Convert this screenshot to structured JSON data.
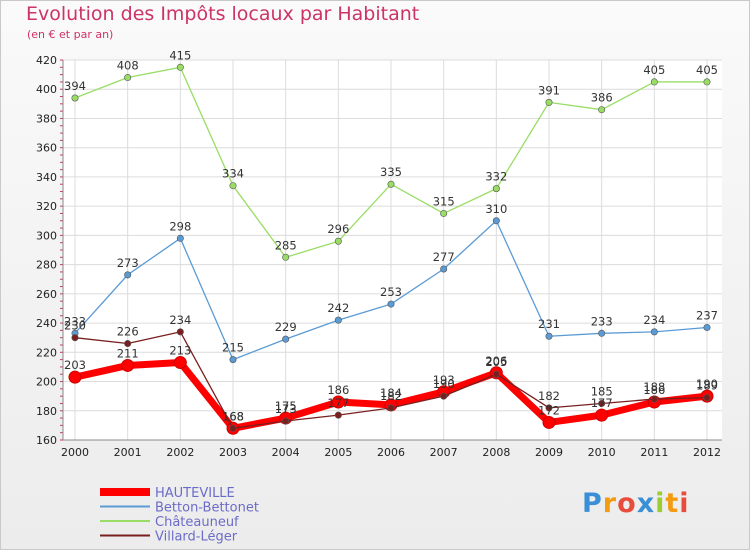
{
  "chart_data": {
    "type": "line",
    "title": "Evolution des Impôts locaux par Habitant",
    "subtitle": "(en € et par an)",
    "xlabel": "",
    "ylabel": "",
    "categories": [
      "2000",
      "2001",
      "2002",
      "2003",
      "2004",
      "2005",
      "2006",
      "2007",
      "2008",
      "2009",
      "2010",
      "2011",
      "2012"
    ],
    "ylim": [
      160,
      420
    ],
    "yticks": [
      160,
      180,
      200,
      220,
      240,
      260,
      280,
      300,
      320,
      340,
      360,
      380,
      400,
      420
    ],
    "grid": true,
    "legend": "bottom-left",
    "series": [
      {
        "name": "HAUTEVILLE",
        "color": "#ff0000",
        "values": [
          203,
          211,
          213,
          168,
          175,
          186,
          184,
          193,
          206,
          172,
          177,
          186,
          190
        ]
      },
      {
        "name": "Betton-Bettonet",
        "color": "#5b9bd5",
        "values": [
          233,
          273,
          298,
          215,
          229,
          242,
          253,
          277,
          310,
          231,
          233,
          234,
          237
        ]
      },
      {
        "name": "Châteauneuf",
        "color": "#99dd66",
        "values": [
          394,
          408,
          415,
          334,
          285,
          296,
          335,
          315,
          332,
          391,
          386,
          405,
          405
        ]
      },
      {
        "name": "Villard-Léger",
        "color": "#7a1f1f",
        "values": [
          230,
          226,
          234,
          168,
          173,
          177,
          182,
          190,
          205,
          182,
          185,
          188,
          189
        ]
      }
    ]
  },
  "logo": {
    "text": "Proxiti",
    "letters": [
      "P",
      "r",
      "o",
      "x",
      "i",
      "t",
      "i"
    ],
    "colors": [
      "#3b8fd6",
      "#f39c12",
      "#e74c3c",
      "#3b8fd6",
      "#9acd32",
      "#f39c12",
      "#e74c3c"
    ]
  }
}
